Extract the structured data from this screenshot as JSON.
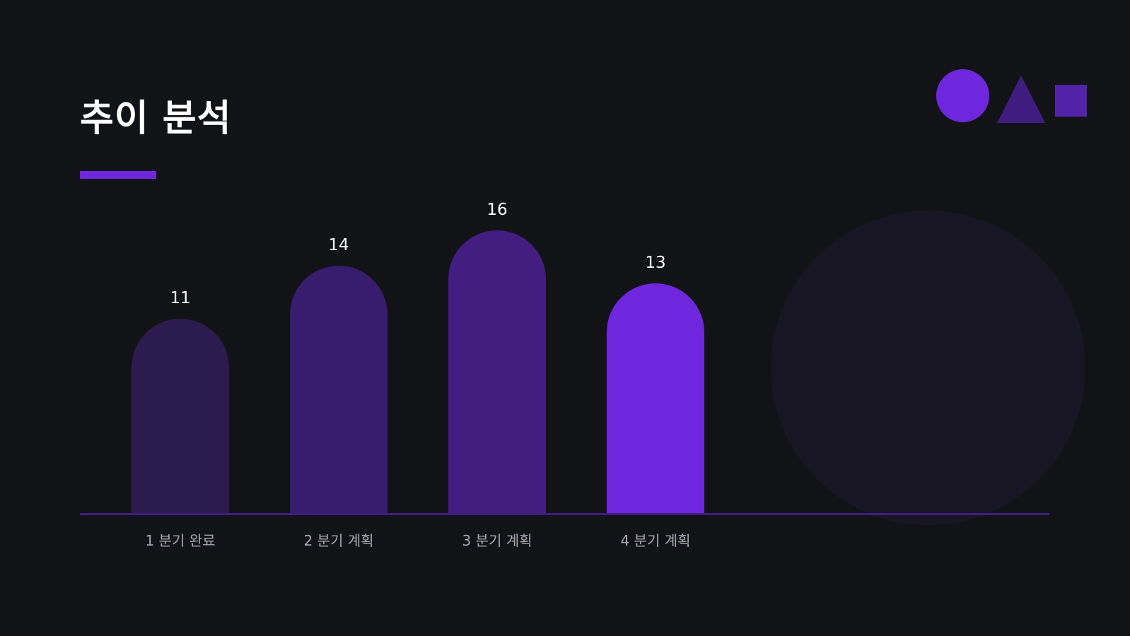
{
  "title": "추이 분석",
  "colors": {
    "background": "#121317",
    "accent": "#6e27dc",
    "baseline": "#3f1d80",
    "value_label": "#ffffff",
    "category_label": "#a9a9b3",
    "decor_circle": "#6e27dc",
    "decor_triangle": "#3f1d80",
    "decor_square": "#5222a8",
    "background_circle": "#181624"
  },
  "chart_data": {
    "type": "bar",
    "title": "",
    "xlabel": "",
    "ylabel": "",
    "categories": [
      "1 분기 완료",
      "2 분기 계획",
      "3 분기 계획",
      "4 분기 계획"
    ],
    "values": [
      11,
      14,
      16,
      13
    ],
    "data_labels": [
      "11",
      "14",
      "16",
      "13"
    ],
    "bar_colors": [
      "#2c1b4e",
      "#381c6e",
      "#431e80",
      "#6e27dc"
    ],
    "grid": false,
    "legend": "none"
  }
}
